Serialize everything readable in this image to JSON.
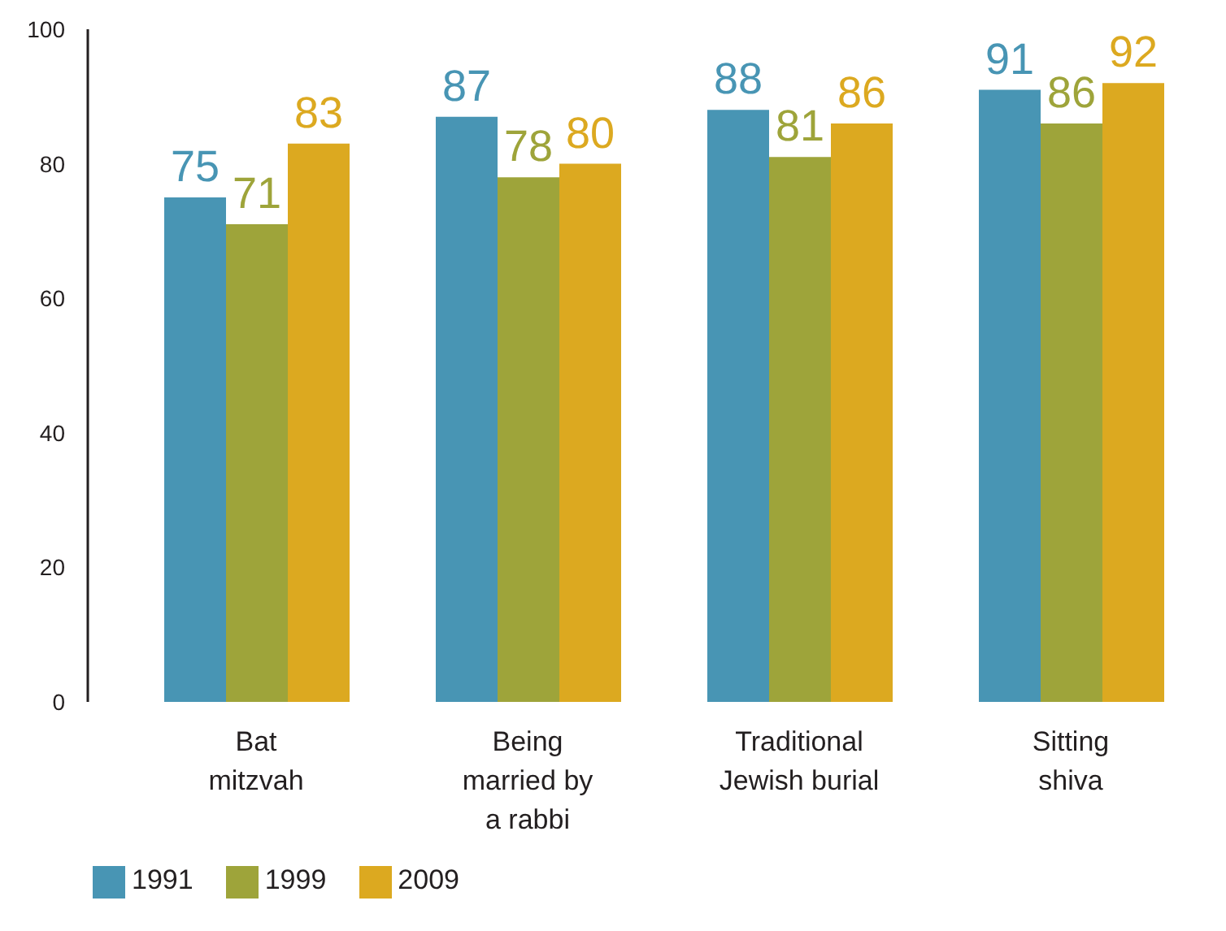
{
  "chart_data": {
    "type": "bar",
    "categories": [
      "Bat\nmitzvah",
      "Being\nmarried by\na rabbi",
      "Traditional\nJewish burial",
      "Sitting\nshiva"
    ],
    "series": [
      {
        "name": "1991",
        "color": "#4895b4",
        "values": [
          75,
          87,
          88,
          91
        ]
      },
      {
        "name": "1999",
        "color": "#9ea43a",
        "values": [
          71,
          78,
          81,
          86
        ]
      },
      {
        "name": "2009",
        "color": "#dca920",
        "values": [
          83,
          80,
          86,
          92
        ]
      }
    ],
    "ylim": [
      0,
      100
    ],
    "yticks": [
      0,
      20,
      40,
      60,
      80,
      100
    ],
    "data_labels": true,
    "legend": "bottom left"
  }
}
